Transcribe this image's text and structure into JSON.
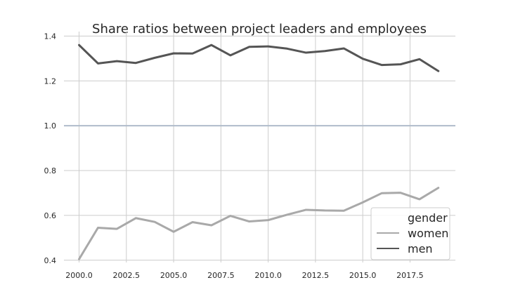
{
  "chart_data": {
    "type": "line",
    "title": "Share ratios between project leaders and employees",
    "xlabel": "",
    "ylabel": "",
    "xlim": [
      1999.2,
      2019.9
    ],
    "ylim": [
      0.39,
      1.42
    ],
    "x_ticks": [
      2000.0,
      2002.5,
      2005.0,
      2007.5,
      2010.0,
      2012.5,
      2015.0,
      2017.5
    ],
    "x_tick_labels": [
      "2000.0",
      "2002.5",
      "2005.0",
      "2007.5",
      "2010.0",
      "2012.5",
      "2015.0",
      "2017.5"
    ],
    "y_ticks": [
      0.4,
      0.6,
      0.8,
      1.0,
      1.2,
      1.4
    ],
    "y_tick_labels": [
      "0.4",
      "0.6",
      "0.8",
      "1.0",
      "1.2",
      "1.4"
    ],
    "grid": true,
    "reference_line": {
      "y": 1.0,
      "color": "#b0bccb"
    },
    "x": [
      2000,
      2001,
      2002,
      2003,
      2004,
      2005,
      2006,
      2007,
      2008,
      2009,
      2010,
      2011,
      2012,
      2013,
      2014,
      2015,
      2016,
      2017,
      2018,
      2019
    ],
    "series": [
      {
        "name": "women",
        "color": "#a9a9a9",
        "values": [
          0.405,
          0.545,
          0.54,
          0.588,
          0.571,
          0.527,
          0.57,
          0.556,
          0.598,
          0.573,
          0.579,
          0.603,
          0.625,
          0.622,
          0.621,
          0.658,
          0.699,
          0.701,
          0.672,
          0.723
        ]
      },
      {
        "name": "men",
        "color": "#555555",
        "values": [
          1.36,
          1.278,
          1.288,
          1.28,
          1.303,
          1.323,
          1.322,
          1.36,
          1.314,
          1.352,
          1.354,
          1.344,
          1.326,
          1.333,
          1.345,
          1.299,
          1.271,
          1.274,
          1.297,
          1.244
        ]
      }
    ],
    "legend": {
      "title": "gender",
      "placement": "bottom-right",
      "entries": [
        "women",
        "men"
      ]
    }
  }
}
